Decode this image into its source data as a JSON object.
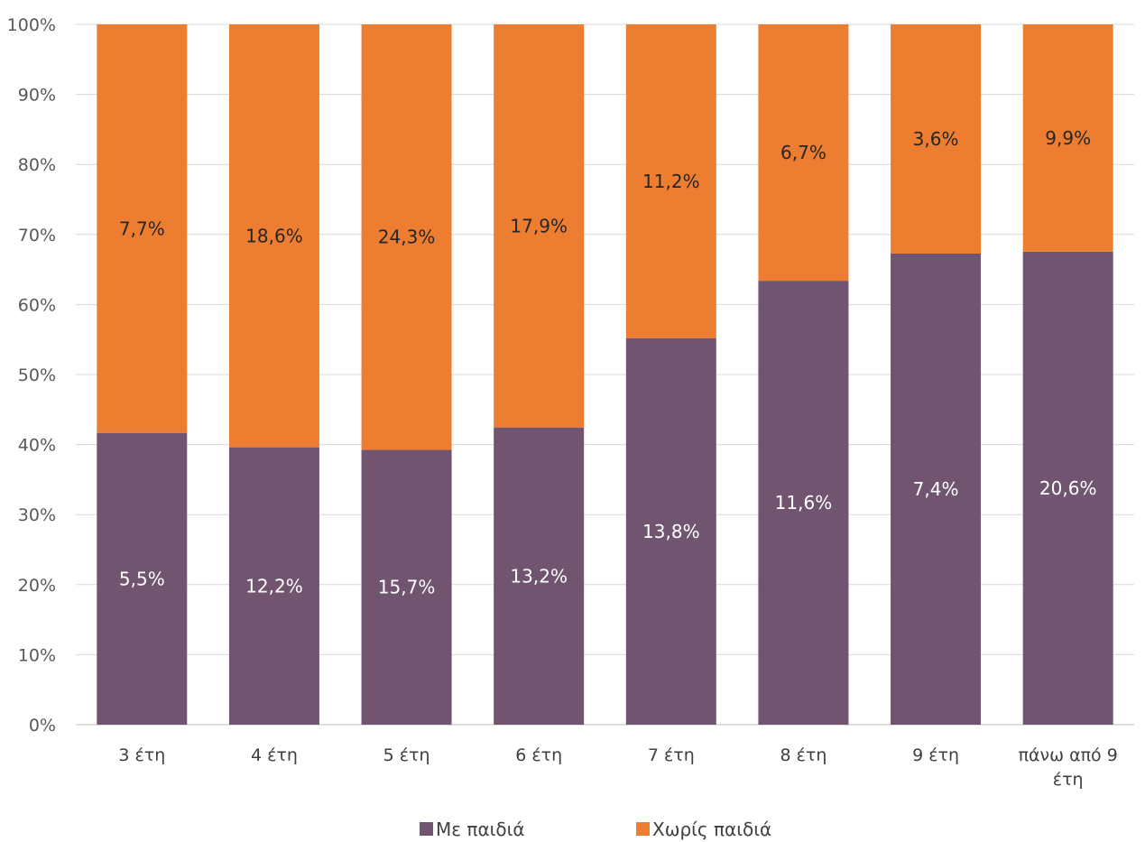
{
  "chart_data": {
    "type": "bar",
    "stacked": true,
    "percent_stacked": true,
    "categories": [
      "3 έτη",
      "4 έτη",
      "5 έτη",
      "6 έτη",
      "7 έτη",
      "8 έτη",
      "9 έτη",
      "πάνω από 9 έτη"
    ],
    "series": [
      {
        "name": "Με παιδιά",
        "color": "#715570",
        "label_color": "#ffffff",
        "values": [
          5.5,
          12.2,
          15.7,
          13.2,
          13.8,
          11.6,
          7.4,
          20.6
        ],
        "labels": [
          "5,5%",
          "12,2%",
          "15,7%",
          "13,2%",
          "13,8%",
          "11,6%",
          "7,4%",
          "20,6%"
        ]
      },
      {
        "name": "Χωρίς παιδιά",
        "color": "#ED7D31",
        "label_color": "#262626",
        "values": [
          7.7,
          18.6,
          24.3,
          17.9,
          11.2,
          6.7,
          3.6,
          9.9
        ],
        "labels": [
          "7,7%",
          "18,6%",
          "24,3%",
          "17,9%",
          "11,2%",
          "6,7%",
          "3,6%",
          "9,9%"
        ]
      }
    ],
    "y_ticks": [
      "0%",
      "10%",
      "20%",
      "30%",
      "40%",
      "50%",
      "60%",
      "70%",
      "80%",
      "90%",
      "100%"
    ],
    "ylim": [
      0,
      100
    ],
    "grid": true,
    "legend_position": "bottom",
    "title": "",
    "xlabel": "",
    "ylabel": ""
  }
}
